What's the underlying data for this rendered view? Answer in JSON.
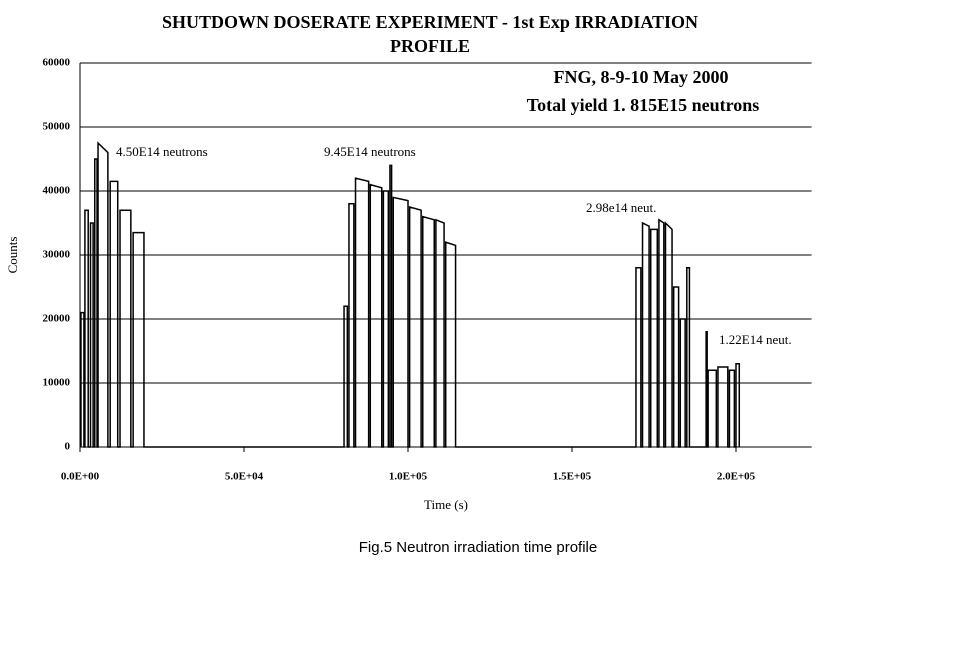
{
  "chart_data": {
    "type": "line",
    "title": "SHUTDOWN DOSERATE EXPERIMENT - 1st Exp  IRRADIATION PROFILE",
    "x_label": "Time (s)",
    "y_label": "Counts",
    "caption": "Fig.5 Neutron irradiation time profile",
    "annotations": [
      "FNG, 8-9-10 May 2000",
      "Total yield 1. 815E15 neutrons",
      "4.50E14 neutrons",
      "9.45E14 neutrons",
      "2.98e14 neut.",
      "1.22E14 neut."
    ],
    "color": "#000000",
    "grid": true,
    "xlim": [
      0,
      220000
    ],
    "xticks": [
      {
        "value": 0,
        "label": "0.0E+00"
      },
      {
        "value": 50000,
        "label": "5.0E+04"
      },
      {
        "value": 100000,
        "label": "1.0E+05"
      },
      {
        "value": 150000,
        "label": "1.5E+05"
      },
      {
        "value": 200000,
        "label": "2.0E+05"
      }
    ],
    "ylim": [
      0,
      60000
    ],
    "yticks": [
      0,
      10000,
      20000,
      30000,
      40000,
      50000,
      60000
    ],
    "x": [
      300,
      300,
      1200,
      1200,
      1500,
      1500,
      2500,
      2500,
      3200,
      3200,
      4000,
      4000,
      4500,
      4500,
      5200,
      5200,
      5500,
      5500,
      8500,
      8500,
      9200,
      9200,
      11500,
      11500,
      12200,
      12200,
      15500,
      15500,
      16200,
      16200,
      19500,
      19500,
      80500,
      80500,
      81500,
      81500,
      82000,
      82000,
      83500,
      83500,
      84000,
      84000,
      88000,
      88000,
      88500,
      88500,
      92000,
      92000,
      92500,
      92500,
      94000,
      94000,
      94500,
      94500,
      95000,
      95000,
      95500,
      95500,
      100000,
      100000,
      100500,
      100500,
      104000,
      104000,
      104500,
      104500,
      108000,
      108000,
      108500,
      108500,
      111000,
      111000,
      111500,
      111500,
      114500,
      114500,
      169500,
      169500,
      171000,
      171000,
      171500,
      171500,
      173500,
      173500,
      174000,
      174000,
      176000,
      176000,
      176500,
      176500,
      178000,
      178000,
      178500,
      178500,
      180500,
      180500,
      181000,
      181000,
      182500,
      182500,
      183000,
      183000,
      184500,
      184500,
      185000,
      185000,
      185800,
      185800,
      190900,
      190900,
      191200,
      191200,
      191500,
      191500,
      194000,
      194000,
      194500,
      194500,
      197500,
      197500,
      198000,
      198000,
      199500,
      199500,
      200000,
      200000,
      201000,
      201000
    ],
    "values": [
      0,
      21000,
      21000,
      0,
      0,
      37000,
      37000,
      0,
      0,
      35000,
      35000,
      0,
      0,
      45000,
      45000,
      0,
      0,
      47500,
      46000,
      0,
      0,
      41500,
      41500,
      0,
      0,
      37000,
      37000,
      0,
      0,
      33500,
      33500,
      0,
      0,
      22000,
      22000,
      0,
      0,
      38000,
      38000,
      0,
      0,
      42000,
      41500,
      0,
      0,
      41000,
      40500,
      0,
      0,
      40000,
      40000,
      0,
      0,
      44000,
      44000,
      0,
      0,
      39000,
      38500,
      0,
      0,
      37500,
      37000,
      0,
      0,
      36000,
      35500,
      0,
      0,
      35500,
      35000,
      0,
      0,
      32000,
      31500,
      0,
      0,
      28000,
      28000,
      0,
      0,
      35000,
      34500,
      0,
      0,
      34000,
      34000,
      0,
      0,
      35500,
      35000,
      0,
      0,
      35000,
      34000,
      0,
      0,
      25000,
      25000,
      0,
      0,
      20000,
      20000,
      0,
      0,
      28000,
      28000,
      0,
      0,
      18000,
      18000,
      0,
      0,
      12000,
      12000,
      0,
      0,
      12500,
      12500,
      0,
      0,
      12000,
      12000,
      0,
      0,
      13000,
      13000,
      0
    ]
  }
}
